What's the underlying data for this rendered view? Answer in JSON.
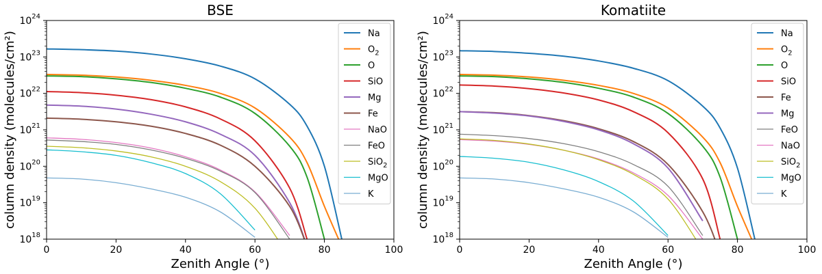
{
  "chart_data": [
    {
      "type": "line",
      "title": "BSE",
      "xlabel": "Zenith Angle (°)",
      "ylabel": "column density (molecules/cm²)",
      "xlim": [
        0,
        100
      ],
      "ylim_log10": [
        18,
        24
      ],
      "xticks": [
        0,
        20,
        40,
        60,
        80,
        100
      ],
      "yticks": [
        {
          "base": "10",
          "exp": "18"
        },
        {
          "base": "10",
          "exp": "19"
        },
        {
          "base": "10",
          "exp": "20"
        },
        {
          "base": "10",
          "exp": "21"
        },
        {
          "base": "10",
          "exp": "22"
        },
        {
          "base": "10",
          "exp": "23"
        },
        {
          "base": "10",
          "exp": "24"
        }
      ],
      "legend_position": "top-right",
      "x": [
        0,
        10,
        20,
        30,
        40,
        50,
        60,
        70,
        75,
        80,
        85,
        90
      ],
      "series": [
        {
          "name": "Na",
          "label_base": "Na",
          "label_sub": "",
          "color": "#1f77b4",
          "log10_values": [
            23.22,
            23.2,
            23.16,
            23.08,
            22.95,
            22.75,
            22.4,
            21.7,
            21.1,
            20.0,
            18.0
          ]
        },
        {
          "name": "O2",
          "label_base": "O",
          "label_sub": "2",
          "color": "#ff7f0e",
          "log10_values": [
            22.52,
            22.5,
            22.45,
            22.36,
            22.22,
            22.0,
            21.6,
            20.8,
            20.1,
            18.9,
            17.8
          ]
        },
        {
          "name": "O",
          "label_base": "O",
          "label_sub": "",
          "color": "#2ca02c",
          "log10_values": [
            22.48,
            22.46,
            22.4,
            22.3,
            22.14,
            21.9,
            21.45,
            20.55,
            19.7,
            18.0
          ]
        },
        {
          "name": "SiO",
          "label_base": "SiO",
          "label_sub": "",
          "color": "#d62728",
          "log10_values": [
            22.05,
            22.02,
            21.95,
            21.83,
            21.63,
            21.3,
            20.7,
            19.4,
            18.0
          ]
        },
        {
          "name": "Mg",
          "label_base": "Mg",
          "label_sub": "",
          "color": "#9467bd",
          "log10_values": [
            21.68,
            21.65,
            21.57,
            21.43,
            21.22,
            20.88,
            20.3,
            19.0,
            17.8
          ]
        },
        {
          "name": "Fe",
          "label_base": "Fe",
          "label_sub": "",
          "color": "#8c564b",
          "log10_values": [
            21.32,
            21.29,
            21.22,
            21.1,
            20.9,
            20.58,
            20.0,
            18.9,
            17.8
          ]
        },
        {
          "name": "NaO",
          "label_base": "NaO",
          "label_sub": "",
          "color": "#e377c2",
          "log10_values": [
            20.78,
            20.74,
            20.65,
            20.5,
            20.26,
            19.9,
            19.3,
            18.1
          ]
        },
        {
          "name": "FeO",
          "label_base": "FeO",
          "label_sub": "",
          "color": "#7f7f7f",
          "log10_values": [
            20.72,
            20.68,
            20.6,
            20.45,
            20.22,
            19.87,
            19.28,
            18.0
          ]
        },
        {
          "name": "SiO2",
          "label_base": "SiO",
          "label_sub": "2",
          "color": "#bcbd22",
          "log10_values": [
            20.55,
            20.51,
            20.42,
            20.26,
            20.0,
            19.58,
            18.85,
            17.5
          ]
        },
        {
          "name": "MgO",
          "label_base": "MgO",
          "label_sub": "",
          "color": "#17becf",
          "log10_values": [
            20.45,
            20.4,
            20.3,
            20.1,
            19.8,
            19.25,
            18.25
          ]
        },
        {
          "name": "K",
          "label_base": "K",
          "label_sub": "",
          "color": "#1f77b4",
          "opacity": 0.6,
          "log10_values": [
            19.68,
            19.65,
            19.55,
            19.38,
            19.15,
            18.75,
            18.05
          ]
        }
      ]
    },
    {
      "type": "line",
      "title": "Komatiite",
      "xlabel": "Zenith Angle (°)",
      "ylabel": "column density (molecules/cm²)",
      "xlim": [
        0,
        100
      ],
      "ylim_log10": [
        18,
        24
      ],
      "xticks": [
        0,
        20,
        40,
        60,
        80,
        100
      ],
      "yticks": [
        {
          "base": "10",
          "exp": "18"
        },
        {
          "base": "10",
          "exp": "19"
        },
        {
          "base": "10",
          "exp": "20"
        },
        {
          "base": "10",
          "exp": "21"
        },
        {
          "base": "10",
          "exp": "22"
        },
        {
          "base": "10",
          "exp": "23"
        },
        {
          "base": "10",
          "exp": "24"
        }
      ],
      "legend_position": "top-right",
      "x": [
        0,
        10,
        20,
        30,
        40,
        50,
        60,
        70,
        75,
        80,
        85,
        90
      ],
      "series": [
        {
          "name": "Na",
          "label_base": "Na",
          "label_sub": "",
          "color": "#1f77b4",
          "log10_values": [
            23.17,
            23.15,
            23.1,
            23.02,
            22.89,
            22.69,
            22.35,
            21.65,
            21.05,
            19.95,
            18.0
          ]
        },
        {
          "name": "O2",
          "label_base": "O",
          "label_sub": "2",
          "color": "#ff7f0e",
          "log10_values": [
            22.52,
            22.5,
            22.45,
            22.36,
            22.22,
            22.0,
            21.6,
            20.8,
            20.1,
            18.9,
            17.8
          ]
        },
        {
          "name": "O",
          "label_base": "O",
          "label_sub": "",
          "color": "#2ca02c",
          "log10_values": [
            22.48,
            22.46,
            22.4,
            22.3,
            22.14,
            21.9,
            21.45,
            20.55,
            19.7,
            18.0
          ]
        },
        {
          "name": "SiO",
          "label_base": "SiO",
          "label_sub": "",
          "color": "#d62728",
          "log10_values": [
            22.23,
            22.2,
            22.13,
            22.01,
            21.82,
            21.5,
            20.92,
            19.65,
            18.0
          ]
        },
        {
          "name": "Fe",
          "label_base": "Fe",
          "label_sub": "",
          "color": "#8c564b",
          "log10_values": [
            21.5,
            21.47,
            21.39,
            21.25,
            21.03,
            20.68,
            20.05,
            18.75,
            17.6
          ]
        },
        {
          "name": "Mg",
          "label_base": "Mg",
          "label_sub": "",
          "color": "#9467bd",
          "log10_values": [
            21.5,
            21.46,
            21.38,
            21.23,
            21.0,
            20.62,
            19.95,
            18.5
          ]
        },
        {
          "name": "FeO",
          "label_base": "FeO",
          "label_sub": "",
          "color": "#7f7f7f",
          "log10_values": [
            20.88,
            20.84,
            20.76,
            20.62,
            20.4,
            20.05,
            19.45,
            18.1
          ]
        },
        {
          "name": "NaO",
          "label_base": "NaO",
          "label_sub": "",
          "color": "#e377c2",
          "log10_values": [
            20.73,
            20.69,
            20.6,
            20.44,
            20.2,
            19.82,
            19.2,
            18.0
          ]
        },
        {
          "name": "SiO2",
          "label_base": "SiO",
          "label_sub": "2",
          "color": "#bcbd22",
          "log10_values": [
            20.75,
            20.71,
            20.61,
            20.44,
            20.18,
            19.78,
            19.1,
            17.7
          ]
        },
        {
          "name": "MgO",
          "label_base": "MgO",
          "label_sub": "",
          "color": "#17becf",
          "log10_values": [
            20.27,
            20.22,
            20.11,
            19.9,
            19.58,
            19.05,
            18.1
          ]
        },
        {
          "name": "K",
          "label_base": "K",
          "label_sub": "",
          "color": "#1f77b4",
          "opacity": 0.6,
          "log10_values": [
            19.68,
            19.65,
            19.55,
            19.38,
            19.15,
            18.75,
            18.05
          ]
        }
      ]
    }
  ]
}
